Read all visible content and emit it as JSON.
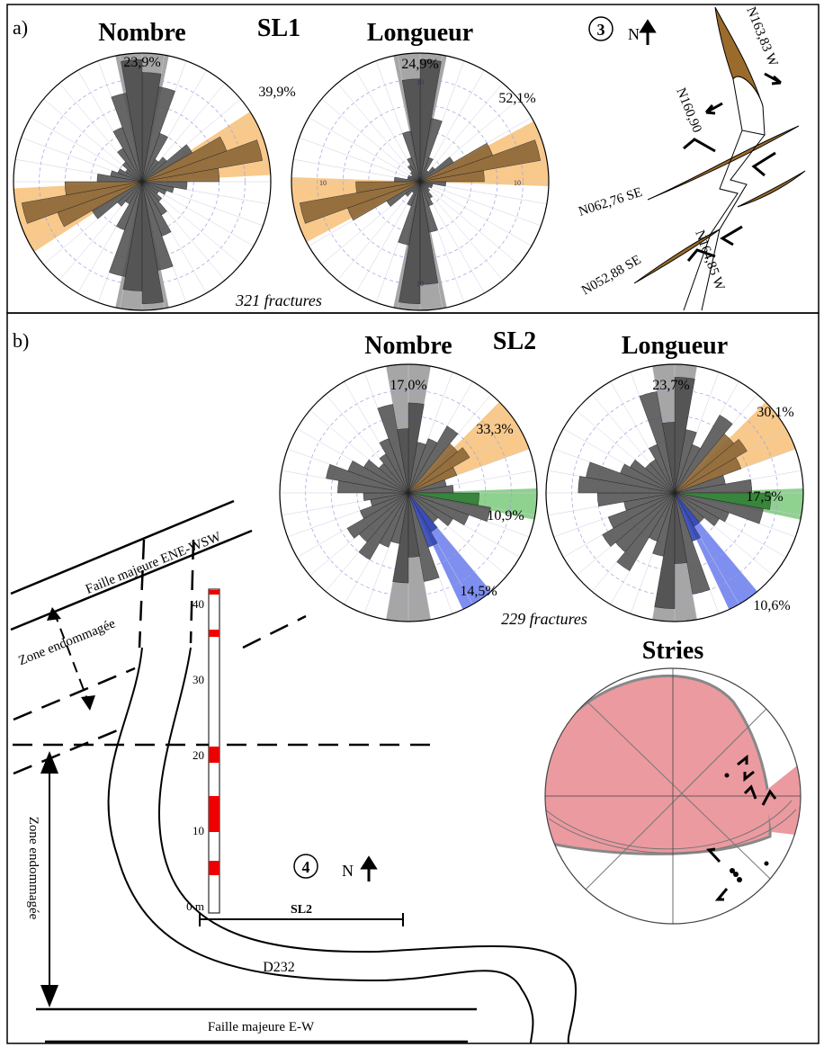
{
  "panel_a": {
    "label": "a)",
    "site": "SL1",
    "count_label": "321 fractures",
    "roses": [
      {
        "title": "Nombre",
        "petals": [
          85,
          75,
          40,
          20,
          25,
          45,
          70,
          95,
          60,
          35,
          25,
          20,
          15,
          20,
          30,
          45,
          70,
          95
        ],
        "sectors": [
          {
            "from": -12,
            "to": 12,
            "color": "#a6a6a6",
            "petal_color": "#4d4d4d",
            "label": "23,9%"
          },
          {
            "from": 168,
            "to": 192,
            "color": "#a6a6a6",
            "petal_color": "#4d4d4d"
          },
          {
            "from": 57,
            "to": 87,
            "color": "#f8c98a",
            "petal_color": "#8a6535",
            "label": "39,9%"
          },
          {
            "from": 237,
            "to": 267,
            "color": "#f8c98a",
            "petal_color": "#8a6535"
          }
        ]
      },
      {
        "title": "Longueur",
        "scale_label": "10",
        "petals": [
          95,
          50,
          20,
          10,
          15,
          30,
          60,
          95,
          50,
          20,
          10,
          10,
          8,
          10,
          15,
          20,
          40,
          80
        ],
        "sectors": [
          {
            "from": -12,
            "to": 12,
            "color": "#a6a6a6",
            "petal_color": "#4d4d4d",
            "label": "24,9%"
          },
          {
            "from": 168,
            "to": 192,
            "color": "#a6a6a6",
            "petal_color": "#4d4d4d"
          },
          {
            "from": 62,
            "to": 92,
            "color": "#f8c98a",
            "petal_color": "#8a6535",
            "label": "52,1%"
          },
          {
            "from": 242,
            "to": 272,
            "color": "#f8c98a",
            "petal_color": "#8a6535"
          }
        ]
      }
    ],
    "diagram": {
      "number": "3",
      "north": "N",
      "planes": [
        "N163,83 W",
        "N160,90",
        "N062,76 SE",
        "N052,88 SE",
        "N164,85 W"
      ]
    }
  },
  "panel_b": {
    "label": "b)",
    "site": "SL2",
    "count_label": "229 fractures",
    "roses": [
      {
        "title": "Nombre",
        "petals": [
          70,
          40,
          45,
          60,
          50,
          55,
          40,
          30,
          35,
          55,
          65,
          50,
          40,
          30,
          35,
          45,
          70,
          50
        ],
        "sectors": [
          {
            "from": -10,
            "to": 10,
            "color": "#a6a6a6",
            "petal_color": "#4d4d4d",
            "label": "17,0%"
          },
          {
            "from": 170,
            "to": 190,
            "color": "#a6a6a6",
            "petal_color": "#4d4d4d"
          },
          {
            "from": 45,
            "to": 70,
            "color": "#f8c98a",
            "petal_color": "#8a6535",
            "label": "33,3%"
          },
          {
            "from": 88,
            "to": 102,
            "color": "#8fd18f",
            "petal_color": "#2e7d32",
            "label": "10,9%"
          },
          {
            "from": 140,
            "to": 155,
            "color": "#7f8ff0",
            "petal_color": "#3346b0",
            "label": "14,5%"
          }
        ]
      },
      {
        "title": "Longueur",
        "petals": [
          90,
          50,
          40,
          70,
          60,
          65,
          55,
          40,
          60,
          75,
          70,
          45,
          40,
          30,
          30,
          40,
          80,
          55
        ],
        "sectors": [
          {
            "from": -10,
            "to": 10,
            "color": "#a6a6a6",
            "petal_color": "#4d4d4d",
            "label": "23,7%"
          },
          {
            "from": 170,
            "to": 190,
            "color": "#a6a6a6",
            "petal_color": "#4d4d4d"
          },
          {
            "from": 45,
            "to": 70,
            "color": "#f8c98a",
            "petal_color": "#8a6535",
            "label": "30,1%"
          },
          {
            "from": 88,
            "to": 102,
            "color": "#8fd18f",
            "petal_color": "#2e7d32",
            "label": "17,5%"
          },
          {
            "from": 140,
            "to": 155,
            "color": "#7f8ff0",
            "petal_color": "#3346b0",
            "label": "10,6%"
          }
        ]
      }
    ],
    "stereonet_title": "Stries",
    "map": {
      "number": "4",
      "north": "N",
      "faults": [
        "Faille majeure ENE-WSW",
        "Faille majeure E-W"
      ],
      "zones": [
        "Zone endommagée",
        "Zone endommagée"
      ],
      "road": "D232",
      "section": "SL2",
      "log_ticks": [
        40,
        30,
        20,
        10,
        "0 m"
      ]
    }
  }
}
